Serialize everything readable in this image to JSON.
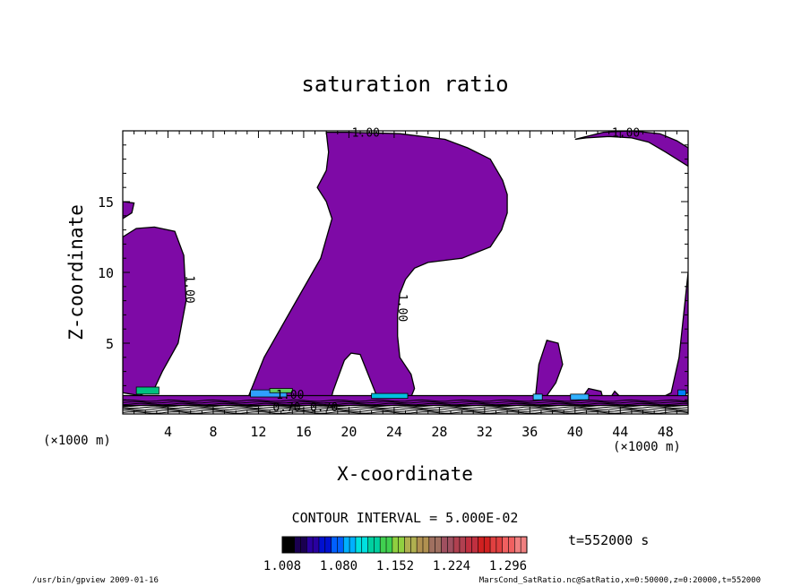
{
  "chart_data": {
    "type": "heatmap",
    "title": "saturation ratio",
    "xlabel": "X-coordinate",
    "ylabel": "Z-coordinate",
    "x_unit_left": "(×1000 m)",
    "x_unit_right": "(×1000 m)",
    "xlim": [
      0,
      50
    ],
    "ylim": [
      0,
      20
    ],
    "x_ticks": [
      4,
      8,
      12,
      16,
      20,
      24,
      28,
      32,
      36,
      40,
      44,
      48
    ],
    "x_tick_labels": [
      "4",
      "8",
      "12",
      "16",
      "20",
      "24",
      "28",
      "32",
      "36",
      "40",
      "44",
      "48"
    ],
    "y_ticks": [
      5,
      10,
      15
    ],
    "y_tick_labels": [
      "5",
      "10",
      "15"
    ],
    "contour_labels": [
      "1.00",
      "1.00",
      "1.00",
      "1.00",
      "0.70",
      "0.70",
      "1.00"
    ],
    "contour_interval_text": "CONTOUR INTERVAL = 5.000E-02",
    "time_label": "t=552000 s",
    "colorbar": {
      "min": 1.008,
      "max": 1.32,
      "tick_values": [
        1.008,
        1.08,
        1.152,
        1.224,
        1.296
      ],
      "tick_labels": [
        "1.008",
        "1.080",
        "1.152",
        "1.224",
        "1.296"
      ],
      "colors": [
        "#000000",
        "#1a0050",
        "#2a00a0",
        "#0010d0",
        "#0060ff",
        "#00b0ff",
        "#00e0e0",
        "#00d0a0",
        "#40d050",
        "#90d040",
        "#b0b050",
        "#b09050",
        "#a07060",
        "#a05060",
        "#b04050",
        "#c03040",
        "#d02020",
        "#e04040",
        "#f06060",
        "#f08080"
      ]
    },
    "fill_color_main": "#7e0aa6",
    "regions": [
      {
        "name": "left-column",
        "x": [
          0,
          0,
          1.2,
          2.8,
          4.6,
          5.4,
          5.6,
          4.9,
          3.5,
          2.8,
          1.5,
          0
        ],
        "y": [
          1.5,
          12.5,
          13.1,
          13.2,
          12.9,
          11.2,
          8.0,
          5.0,
          3.0,
          1.8,
          1.3,
          1.5
        ]
      },
      {
        "name": "left-top-patch",
        "x": [
          0,
          0,
          1.0,
          0.8,
          0
        ],
        "y": [
          13.8,
          15.0,
          14.9,
          14.2,
          13.8
        ]
      },
      {
        "name": "central-plume",
        "x": [
          11.1,
          12.5,
          15.0,
          17.5,
          18.5,
          18.0,
          17.2,
          18.0,
          18.2,
          18.0,
          20.0,
          24.5,
          28.5,
          30.5,
          32.5,
          33.6,
          34.0,
          34.0,
          33.5,
          32.5,
          30.0,
          27.0,
          25.8,
          25.0,
          24.5,
          24.3,
          24.3,
          24.5,
          25.5,
          25.8,
          25.5,
          23.5,
          22.5,
          21.6,
          21.0,
          20.2,
          19.6,
          19.0,
          18.6,
          18.4,
          17.6,
          16.6,
          14.0,
          12.0,
          11.1
        ],
        "y": [
          1.2,
          4.0,
          7.5,
          11.0,
          13.8,
          15.0,
          16.0,
          17.2,
          18.5,
          19.9,
          19.9,
          19.8,
          19.4,
          18.8,
          18.0,
          16.5,
          15.5,
          14.2,
          13.0,
          11.8,
          11.0,
          10.7,
          10.3,
          9.5,
          8.5,
          7.0,
          5.5,
          4.0,
          2.8,
          1.8,
          1.2,
          1.1,
          1.2,
          3.0,
          4.2,
          4.3,
          3.8,
          2.5,
          1.6,
          1.0,
          1.0,
          1.2,
          1.3,
          1.2,
          1.2
        ]
      },
      {
        "name": "right-top-band",
        "x": [
          40.0,
          42.5,
          45.0,
          47.5,
          49.0,
          50.0,
          50.0,
          48.0,
          46.5,
          45.0,
          43.0,
          41.0,
          40.0
        ],
        "y": [
          19.4,
          19.9,
          20.0,
          19.8,
          19.3,
          18.8,
          17.5,
          18.5,
          19.2,
          19.5,
          19.6,
          19.5,
          19.4
        ]
      },
      {
        "name": "right-column",
        "x": [
          48.5,
          49.2,
          50.0,
          50.0,
          49.0,
          48.2,
          48.0,
          48.5
        ],
        "y": [
          1.5,
          4.0,
          10.0,
          1.5,
          1.2,
          1.1,
          1.3,
          1.5
        ]
      },
      {
        "name": "right-bubble-36",
        "x": [
          36.5,
          36.8,
          37.5,
          38.5,
          38.9,
          38.3,
          37.5,
          36.9,
          36.5
        ],
        "y": [
          1.2,
          3.5,
          5.2,
          5.0,
          3.5,
          2.2,
          1.3,
          1.0,
          1.2
        ]
      },
      {
        "name": "right-bubble-41",
        "x": [
          40.5,
          41.2,
          42.3,
          42.5,
          41.5,
          40.5
        ],
        "y": [
          1.0,
          1.8,
          1.6,
          1.0,
          0.8,
          1.0
        ]
      },
      {
        "name": "right-patch-43",
        "x": [
          43.0,
          43.5,
          44.0,
          43.6,
          43.0
        ],
        "y": [
          1.0,
          1.6,
          1.2,
          0.9,
          1.0
        ]
      },
      {
        "name": "bottom-strip",
        "x": [
          0,
          50,
          50,
          0
        ],
        "y": [
          0.6,
          0.6,
          1.3,
          1.3
        ]
      }
    ],
    "high_patches": [
      {
        "x": 1.2,
        "y": 1.4,
        "w": 2.0,
        "h": 0.5,
        "color": "#00c080"
      },
      {
        "x": 11.3,
        "y": 1.2,
        "w": 3.2,
        "h": 0.5,
        "color": "#30a0ff"
      },
      {
        "x": 13.0,
        "y": 1.5,
        "w": 2.0,
        "h": 0.3,
        "color": "#60d060"
      },
      {
        "x": 22.0,
        "y": 1.1,
        "w": 3.2,
        "h": 0.35,
        "color": "#00c0e0"
      },
      {
        "x": 36.3,
        "y": 1.0,
        "w": 0.8,
        "h": 0.4,
        "color": "#40c0ff"
      },
      {
        "x": 39.6,
        "y": 1.0,
        "w": 1.6,
        "h": 0.4,
        "color": "#30b0ff"
      },
      {
        "x": 49.1,
        "y": 1.3,
        "w": 0.7,
        "h": 0.4,
        "color": "#0080ff"
      }
    ]
  },
  "footer": {
    "left": "/usr/bin/gpview  2009-01-16",
    "right": "MarsCond_SatRatio.nc@SatRatio,x=0:50000,z=0:20000,t=552000"
  }
}
